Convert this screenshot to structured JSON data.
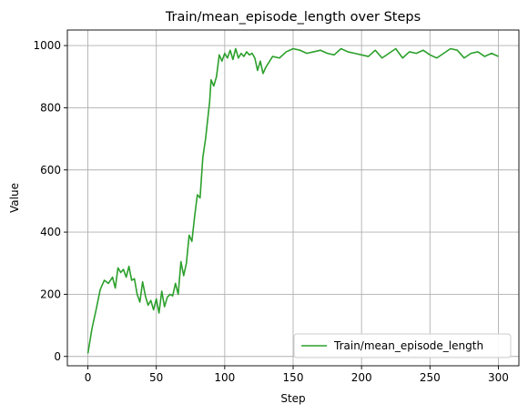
{
  "chart_data": {
    "type": "line",
    "title": "Train/mean_episode_length over Steps",
    "xlabel": "Step",
    "ylabel": "Value",
    "xlim": [
      -15,
      315
    ],
    "ylim": [
      -30,
      1050
    ],
    "xticks": [
      0,
      50,
      100,
      150,
      200,
      250,
      300
    ],
    "yticks": [
      0,
      200,
      400,
      600,
      800,
      1000
    ],
    "grid": true,
    "legend_position": "bottom-right",
    "colors": {
      "line": "#2ca02c",
      "grid": "#b0b0b0",
      "axis": "#000000"
    },
    "series": [
      {
        "name": "Train/mean_episode_length",
        "x": [
          0,
          3,
          6,
          9,
          12,
          15,
          18,
          20,
          22,
          24,
          26,
          28,
          30,
          32,
          34,
          36,
          38,
          40,
          42,
          44,
          46,
          48,
          50,
          52,
          54,
          56,
          58,
          60,
          62,
          64,
          66,
          68,
          70,
          72,
          74,
          76,
          78,
          80,
          82,
          84,
          86,
          88,
          89,
          90,
          92,
          94,
          96,
          98,
          100,
          102,
          104,
          106,
          108,
          110,
          112,
          114,
          116,
          118,
          120,
          122,
          124,
          126,
          128,
          130,
          135,
          140,
          145,
          150,
          155,
          160,
          165,
          170,
          175,
          180,
          185,
          190,
          195,
          200,
          205,
          210,
          215,
          220,
          225,
          230,
          235,
          240,
          245,
          250,
          255,
          260,
          265,
          270,
          275,
          280,
          285,
          290,
          295,
          300
        ],
        "values": [
          10,
          90,
          150,
          215,
          245,
          235,
          255,
          220,
          285,
          270,
          280,
          255,
          290,
          245,
          250,
          200,
          175,
          240,
          195,
          165,
          180,
          150,
          185,
          140,
          210,
          160,
          190,
          200,
          195,
          235,
          200,
          305,
          260,
          300,
          390,
          370,
          450,
          520,
          510,
          640,
          700,
          780,
          820,
          890,
          870,
          900,
          970,
          950,
          975,
          960,
          985,
          955,
          990,
          960,
          975,
          965,
          980,
          970,
          975,
          960,
          920,
          950,
          910,
          930,
          965,
          960,
          980,
          990,
          985,
          975,
          980,
          985,
          975,
          970,
          990,
          980,
          975,
          970,
          965,
          985,
          960,
          975,
          990,
          960,
          980,
          975,
          985,
          970,
          960,
          975,
          990,
          985,
          960,
          975,
          980,
          965,
          975,
          965
        ]
      }
    ]
  }
}
